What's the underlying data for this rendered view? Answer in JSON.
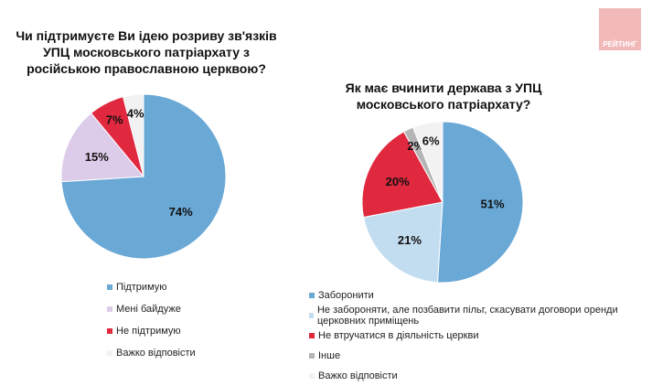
{
  "logo": "РЕЙТИНГ",
  "chart_data": [
    {
      "type": "pie",
      "title": "Чи підтримуєте Ви ідею розриву зв'язків УПЦ московського патріархату з російською православною церквою?",
      "categories": [
        "Підтримую",
        "Мені байдуже",
        "Не підтримую",
        "Важко відповісти"
      ],
      "values": [
        74,
        15,
        7,
        4
      ],
      "labels": [
        "74%",
        "15%",
        "7%",
        "4%"
      ],
      "colors": [
        "#6aa8d6",
        "#dccbe9",
        "#e0283f",
        "#f2f2f2"
      ],
      "legend": "bottom-left"
    },
    {
      "type": "pie",
      "title": "Як має вчинити держава з УПЦ московського патріархату?",
      "categories": [
        "Заборонити",
        "Не забороняти, але позбавити пільг, скасувати договори оренди церковних приміщень",
        "Не втручатися в діяльність церкви",
        "Інше",
        "Важко відповісти"
      ],
      "values": [
        51,
        21,
        20,
        2,
        6
      ],
      "labels": [
        "51%",
        "21%",
        "20%",
        "2%",
        "6%"
      ],
      "colors": [
        "#6aa8d6",
        "#c3ddf0",
        "#e0283f",
        "#b5b5b5",
        "#f2f2f2"
      ],
      "legend": "bottom"
    }
  ]
}
